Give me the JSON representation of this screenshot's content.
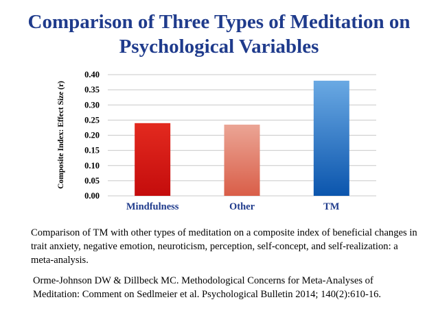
{
  "slide": {
    "title_line1": "Comparison of Three Types of Meditation on",
    "title_line2": "Psychological Variables",
    "caption": "Comparison of TM with other types of meditation on a composite index of beneficial changes in trait anxiety, negative emotion, neuroticism, perception, self-concept, and self-realization: a meta-analysis.",
    "reference": "Orme-Johnson DW & Dillbeck MC. Methodological Concerns for Meta-Analyses of Meditation: Comment on Sedlmeier et al. Psychological Bulletin 2014; 140(2):610-16."
  },
  "colors": {
    "title": "#1f3b8c",
    "grid": "#c8c8c8",
    "mindfulness_top": "#e32a1f",
    "mindfulness_bottom": "#c40c0c",
    "other_top": "#eba595",
    "other_bottom": "#d95e48",
    "tm_top": "#6aa9e3",
    "tm_bottom": "#0b55ad"
  },
  "chart_data": {
    "type": "bar",
    "title": "",
    "xlabel": "",
    "ylabel": "Composite Index: Effect Size (r)",
    "ylim": [
      0,
      0.4
    ],
    "yticks": [
      "0.00",
      "0.05",
      "0.10",
      "0.15",
      "0.20",
      "0.25",
      "0.30",
      "0.35",
      "0.40"
    ],
    "categories": [
      "Mindfulness",
      "Other",
      "TM"
    ],
    "values": [
      0.24,
      0.235,
      0.38
    ],
    "grid": true,
    "legend": "none"
  }
}
